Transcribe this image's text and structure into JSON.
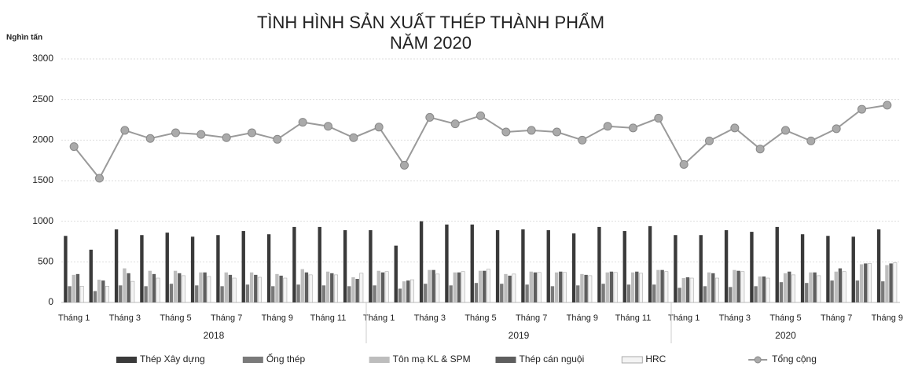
{
  "chart_data": {
    "type": "bar_line",
    "title": "TÌNH HÌNH SẢN XUẤT THÉP THÀNH PHẨM",
    "subtitle": "NĂM 2020",
    "y_label": "Nghìn tấn",
    "categories": [
      "Tháng 1",
      null,
      "Tháng 3",
      null,
      "Tháng 5",
      null,
      "Tháng 7",
      null,
      "Tháng 9",
      null,
      "Tháng 11",
      null,
      "Tháng 1",
      null,
      "Tháng 3",
      null,
      "Tháng 5",
      null,
      "Tháng 7",
      null,
      "Tháng 9",
      null,
      "Tháng 11",
      null,
      "Tháng 1",
      null,
      "Tháng 3",
      null,
      "Tháng 5",
      null,
      "Tháng 7",
      null,
      "Tháng 9"
    ],
    "groups": [
      {
        "label": "2018",
        "size": 12
      },
      {
        "label": "2019",
        "size": 12
      },
      {
        "label": "2020",
        "size": 9
      }
    ],
    "ylim": [
      0,
      3000
    ],
    "yticks": [
      0,
      500,
      1000,
      1500,
      2000,
      2500,
      3000
    ],
    "grid": true,
    "series": [
      {
        "name": "Thép Xây dựng",
        "type": "bar",
        "color": "#3a3a3a",
        "values": [
          820,
          650,
          900,
          830,
          860,
          810,
          830,
          880,
          840,
          930,
          930,
          890,
          890,
          700,
          1000,
          960,
          960,
          890,
          900,
          890,
          850,
          930,
          880,
          940,
          830,
          830,
          890,
          870,
          930,
          840,
          820,
          810,
          900
        ]
      },
      {
        "name": "Ống thép",
        "type": "bar",
        "color": "#7a7a7a",
        "values": [
          200,
          140,
          210,
          200,
          230,
          210,
          200,
          220,
          200,
          220,
          210,
          200,
          210,
          170,
          230,
          210,
          240,
          230,
          220,
          200,
          210,
          230,
          220,
          220,
          180,
          200,
          190,
          200,
          250,
          240,
          270,
          270,
          260
        ]
      },
      {
        "name": "Tôn mạ KL & SPM",
        "type": "bar",
        "color": "#bdbdbd",
        "values": [
          340,
          280,
          420,
          390,
          390,
          370,
          370,
          370,
          350,
          410,
          380,
          310,
          390,
          260,
          400,
          370,
          390,
          350,
          380,
          370,
          350,
          370,
          370,
          400,
          300,
          370,
          400,
          320,
          360,
          370,
          380,
          470,
          460
        ]
      },
      {
        "name": "Thép cán nguội",
        "type": "bar",
        "color": "#5e5e5e",
        "values": [
          350,
          270,
          360,
          350,
          360,
          370,
          340,
          340,
          330,
          370,
          360,
          290,
          370,
          270,
          400,
          370,
          390,
          330,
          370,
          380,
          340,
          380,
          380,
          400,
          310,
          360,
          390,
          320,
          380,
          370,
          420,
          480,
          480
        ]
      },
      {
        "name": "HRC",
        "type": "bar",
        "color": "#f4f4f4",
        "values": [
          200,
          200,
          260,
          300,
          330,
          320,
          300,
          310,
          300,
          340,
          340,
          360,
          380,
          280,
          350,
          380,
          410,
          350,
          370,
          370,
          330,
          370,
          360,
          380,
          300,
          300,
          380,
          300,
          340,
          330,
          380,
          480,
          490
        ]
      },
      {
        "name": "Tổng cộng",
        "type": "line",
        "color": "#9a9a9a",
        "values": [
          1920,
          1530,
          2120,
          2020,
          2090,
          2070,
          2030,
          2090,
          2010,
          2220,
          2170,
          2030,
          2160,
          1690,
          2280,
          2200,
          2300,
          2100,
          2120,
          2100,
          2000,
          2170,
          2150,
          2270,
          1700,
          1990,
          2150,
          1890,
          2120,
          1990,
          2140,
          2380,
          2430
        ]
      }
    ]
  }
}
